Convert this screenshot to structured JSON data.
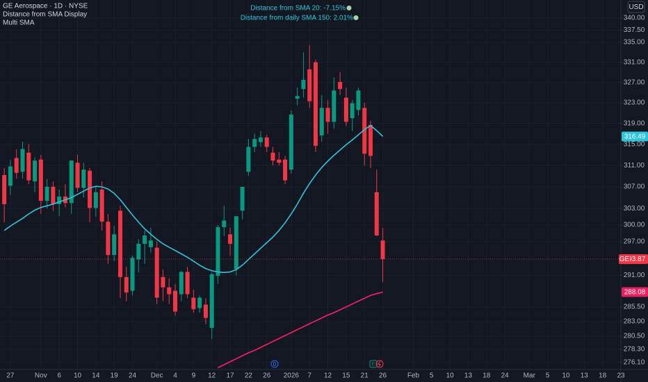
{
  "chart_data": {
    "type": "candlestick",
    "title": "GE Aerospace · 1D · NYSE",
    "indicators": [
      "Distance from SMA Display",
      "Multi SMA"
    ],
    "annotations": [
      "Distance from SMA 20:  -7.15%",
      "Distance from daily SMA 150: 2.01%"
    ],
    "currency": "USD",
    "symbol": "GE",
    "event_markers": [
      "D",
      "E"
    ],
    "log_scale": true,
    "grid": true,
    "up_color": "#089981",
    "down_color": "#f23645",
    "x": [
      -1,
      0,
      1,
      2,
      3,
      4,
      5,
      6,
      7,
      8,
      9,
      10,
      11,
      12,
      13,
      14,
      15,
      16,
      17,
      18,
      19,
      20,
      21,
      22,
      23,
      24,
      25,
      26,
      27,
      28,
      29,
      30,
      31,
      32,
      33,
      34,
      35,
      36,
      37,
      38,
      39,
      40,
      41,
      42,
      43,
      44,
      45,
      46,
      47,
      48,
      49,
      50,
      51,
      52,
      53,
      54,
      55,
      56,
      57,
      58,
      59,
      60,
      61
    ],
    "open": [
      309.2,
      307.2,
      312.4,
      309.8,
      313.4,
      308.0,
      312.1,
      304.4,
      307.0,
      303.8,
      305.2,
      304.0,
      311.5,
      306.8,
      310.0,
      303.1,
      306.5,
      300.6,
      294.6,
      302.6,
      290.7,
      288.3,
      293.8,
      296.6,
      296.0,
      295.9,
      290.7,
      288.9,
      288.3,
      287.7,
      291.6,
      287.1,
      285.3,
      285.9,
      281.9,
      290.9,
      299.6,
      298.3,
      292.1,
      302.6,
      309.8,
      314.5,
      315.4,
      316.3,
      313.4,
      312.1,
      312.1,
      310.2,
      323.8,
      325.7,
      329.6,
      331.0,
      316.7,
      322.0,
      319.3,
      327.1,
      324.0,
      320.0,
      321.6,
      322.0,
      318.7,
      306.0,
      297.2
    ],
    "high": [
      310.5,
      312.0,
      314.0,
      315.5,
      315.0,
      312.5,
      313.0,
      308.5,
      308.0,
      306.5,
      307.5,
      312.0,
      313.0,
      311.5,
      310.5,
      307.0,
      308.0,
      302.0,
      299.8,
      303.5,
      292.5,
      294.5,
      297.5,
      299.0,
      299.5,
      297.0,
      292.0,
      290.5,
      289.5,
      291.8,
      292.5,
      288.5,
      287.5,
      287.0,
      291.5,
      300.0,
      303.5,
      299.5,
      301.5,
      307.0,
      316.0,
      317.0,
      317.5,
      316.8,
      314.5,
      313.5,
      312.8,
      321.5,
      326.0,
      333.0,
      334.5,
      331.5,
      324.5,
      323.5,
      328.0,
      329.0,
      326.0,
      323.5,
      326.0,
      323.0,
      319.5,
      310.2,
      299.5
    ],
    "low": [
      300.5,
      305.5,
      308.5,
      308.5,
      307.5,
      306.0,
      302.0,
      303.0,
      302.5,
      301.6,
      303.2,
      302.0,
      306.0,
      305.0,
      300.5,
      301.5,
      299.0,
      293.0,
      293.5,
      287.0,
      286.5,
      287.5,
      291.5,
      293.0,
      295.0,
      286.0,
      286.5,
      286.0,
      284.0,
      286.5,
      287.0,
      284.5,
      284.5,
      282.5,
      280.0,
      289.5,
      298.0,
      294.5,
      291.0,
      301.0,
      309.0,
      313.5,
      314.5,
      313.5,
      311.0,
      311.0,
      307.5,
      309.5,
      322.5,
      324.0,
      322.0,
      313.5,
      315.5,
      317.0,
      318.0,
      324.5,
      318.5,
      317.5,
      320.5,
      311.0,
      310.5,
      298.0,
      289.8
    ],
    "close": [
      303.8,
      310.8,
      309.6,
      314.1,
      308.2,
      311.9,
      304.4,
      307.0,
      303.8,
      305.2,
      304.0,
      311.9,
      306.8,
      310.2,
      303.1,
      306.0,
      300.6,
      294.6,
      298.3,
      290.7,
      288.0,
      294.1,
      296.6,
      298.1,
      297.2,
      287.1,
      288.9,
      287.7,
      284.7,
      291.6,
      287.7,
      285.1,
      287.1,
      283.6,
      291.2,
      299.6,
      300.8,
      296.6,
      301.6,
      307.0,
      314.5,
      316.0,
      316.3,
      314.5,
      311.9,
      311.5,
      308.2,
      320.7,
      324.3,
      327.5,
      323.3,
      314.7,
      322.0,
      319.3,
      325.4,
      325.7,
      319.3,
      322.9,
      325.4,
      313.2,
      312.8,
      298.1,
      293.87
    ],
    "series": [
      {
        "color": "#2ec4dc",
        "values": [
          299.0,
          299.8,
          300.5,
          301.2,
          302.0,
          302.7,
          303.2,
          303.5,
          303.8,
          304.2,
          304.6,
          305.0,
          305.6,
          306.2,
          306.8,
          307.1,
          307.0,
          306.6,
          305.8,
          304.6,
          303.2,
          301.8,
          300.5,
          299.3,
          298.3,
          297.4,
          296.6,
          296.0,
          295.4,
          294.8,
          294.2,
          293.5,
          292.8,
          292.2,
          291.8,
          291.6,
          291.5,
          291.6,
          292.0,
          292.8,
          293.8,
          294.8,
          295.8,
          296.8,
          297.8,
          299.0,
          300.4,
          302.0,
          303.8,
          305.8,
          307.6,
          309.2,
          310.6,
          311.8,
          312.9,
          313.9,
          314.9,
          315.8,
          316.8,
          317.8,
          318.6,
          317.6,
          316.49
        ]
      },
      {
        "color": "#e91e63",
        "values": [
          null,
          null,
          null,
          null,
          null,
          null,
          null,
          null,
          null,
          null,
          null,
          null,
          null,
          null,
          null,
          null,
          null,
          null,
          null,
          null,
          null,
          null,
          null,
          null,
          null,
          null,
          null,
          null,
          null,
          null,
          null,
          null,
          null,
          null,
          null,
          275.2,
          275.7,
          276.2,
          276.7,
          277.2,
          277.7,
          278.1,
          278.6,
          279.1,
          279.6,
          280.1,
          280.6,
          281.1,
          281.6,
          282.1,
          282.6,
          283.1,
          283.6,
          284.1,
          284.5,
          285.0,
          285.5,
          286.0,
          286.5,
          287.0,
          287.5,
          287.8,
          288.08
        ]
      }
    ],
    "xlim": [
      -1.7,
      100
    ],
    "xticks": [
      {
        "value": 0,
        "label": "27"
      },
      {
        "value": 5,
        "label": "Nov"
      },
      {
        "value": 8,
        "label": "6"
      },
      {
        "value": 11,
        "label": "10"
      },
      {
        "value": 14,
        "label": "14"
      },
      {
        "value": 17,
        "label": "19"
      },
      {
        "value": 20,
        "label": "24"
      },
      {
        "value": 24,
        "label": "Dec"
      },
      {
        "value": 27,
        "label": "4"
      },
      {
        "value": 30,
        "label": "9"
      },
      {
        "value": 33,
        "label": "12"
      },
      {
        "value": 36,
        "label": "17"
      },
      {
        "value": 39,
        "label": "22"
      },
      {
        "value": 42,
        "label": "26"
      },
      {
        "value": 46,
        "label": "2026"
      },
      {
        "value": 49,
        "label": "7"
      },
      {
        "value": 52,
        "label": "12"
      },
      {
        "value": 55,
        "label": "15"
      },
      {
        "value": 58,
        "label": "21"
      },
      {
        "value": 61,
        "label": "26"
      },
      {
        "value": 66,
        "label": "Feb"
      },
      {
        "value": 69,
        "label": "5"
      },
      {
        "value": 72,
        "label": "10"
      },
      {
        "value": 75,
        "label": "13"
      },
      {
        "value": 78,
        "label": "18"
      },
      {
        "value": 81,
        "label": "24"
      },
      {
        "value": 85,
        "label": "Mar"
      },
      {
        "value": 88,
        "label": "5"
      },
      {
        "value": 91,
        "label": "10"
      },
      {
        "value": 94,
        "label": "13"
      },
      {
        "value": 97,
        "label": "18"
      },
      {
        "value": 100,
        "label": "23"
      }
    ],
    "ylim": [
      274.9,
      343.7
    ],
    "yticks": [
      {
        "value": 340,
        "label": "340.00"
      },
      {
        "value": 337.5,
        "label": "337.50"
      },
      {
        "value": 335,
        "label": "335.00"
      },
      {
        "value": 331,
        "label": "331.00"
      },
      {
        "value": 327,
        "label": "327.00"
      },
      {
        "value": 323,
        "label": "323.00"
      },
      {
        "value": 319,
        "label": "319.00"
      },
      {
        "value": 315,
        "label": "315.00"
      },
      {
        "value": 311,
        "label": "311.00"
      },
      {
        "value": 307,
        "label": "307.00"
      },
      {
        "value": 303,
        "label": "303.00"
      },
      {
        "value": 300,
        "label": "300.00"
      },
      {
        "value": 297,
        "label": "297.00"
      },
      {
        "value": 291,
        "label": "291.00"
      },
      {
        "value": 285.5,
        "label": "285.50"
      },
      {
        "value": 283,
        "label": "283.00"
      },
      {
        "value": 280.5,
        "label": "280.50"
      },
      {
        "value": 278.3,
        "label": "278.30"
      },
      {
        "value": 276.1,
        "label": "276.10"
      }
    ]
  }
}
